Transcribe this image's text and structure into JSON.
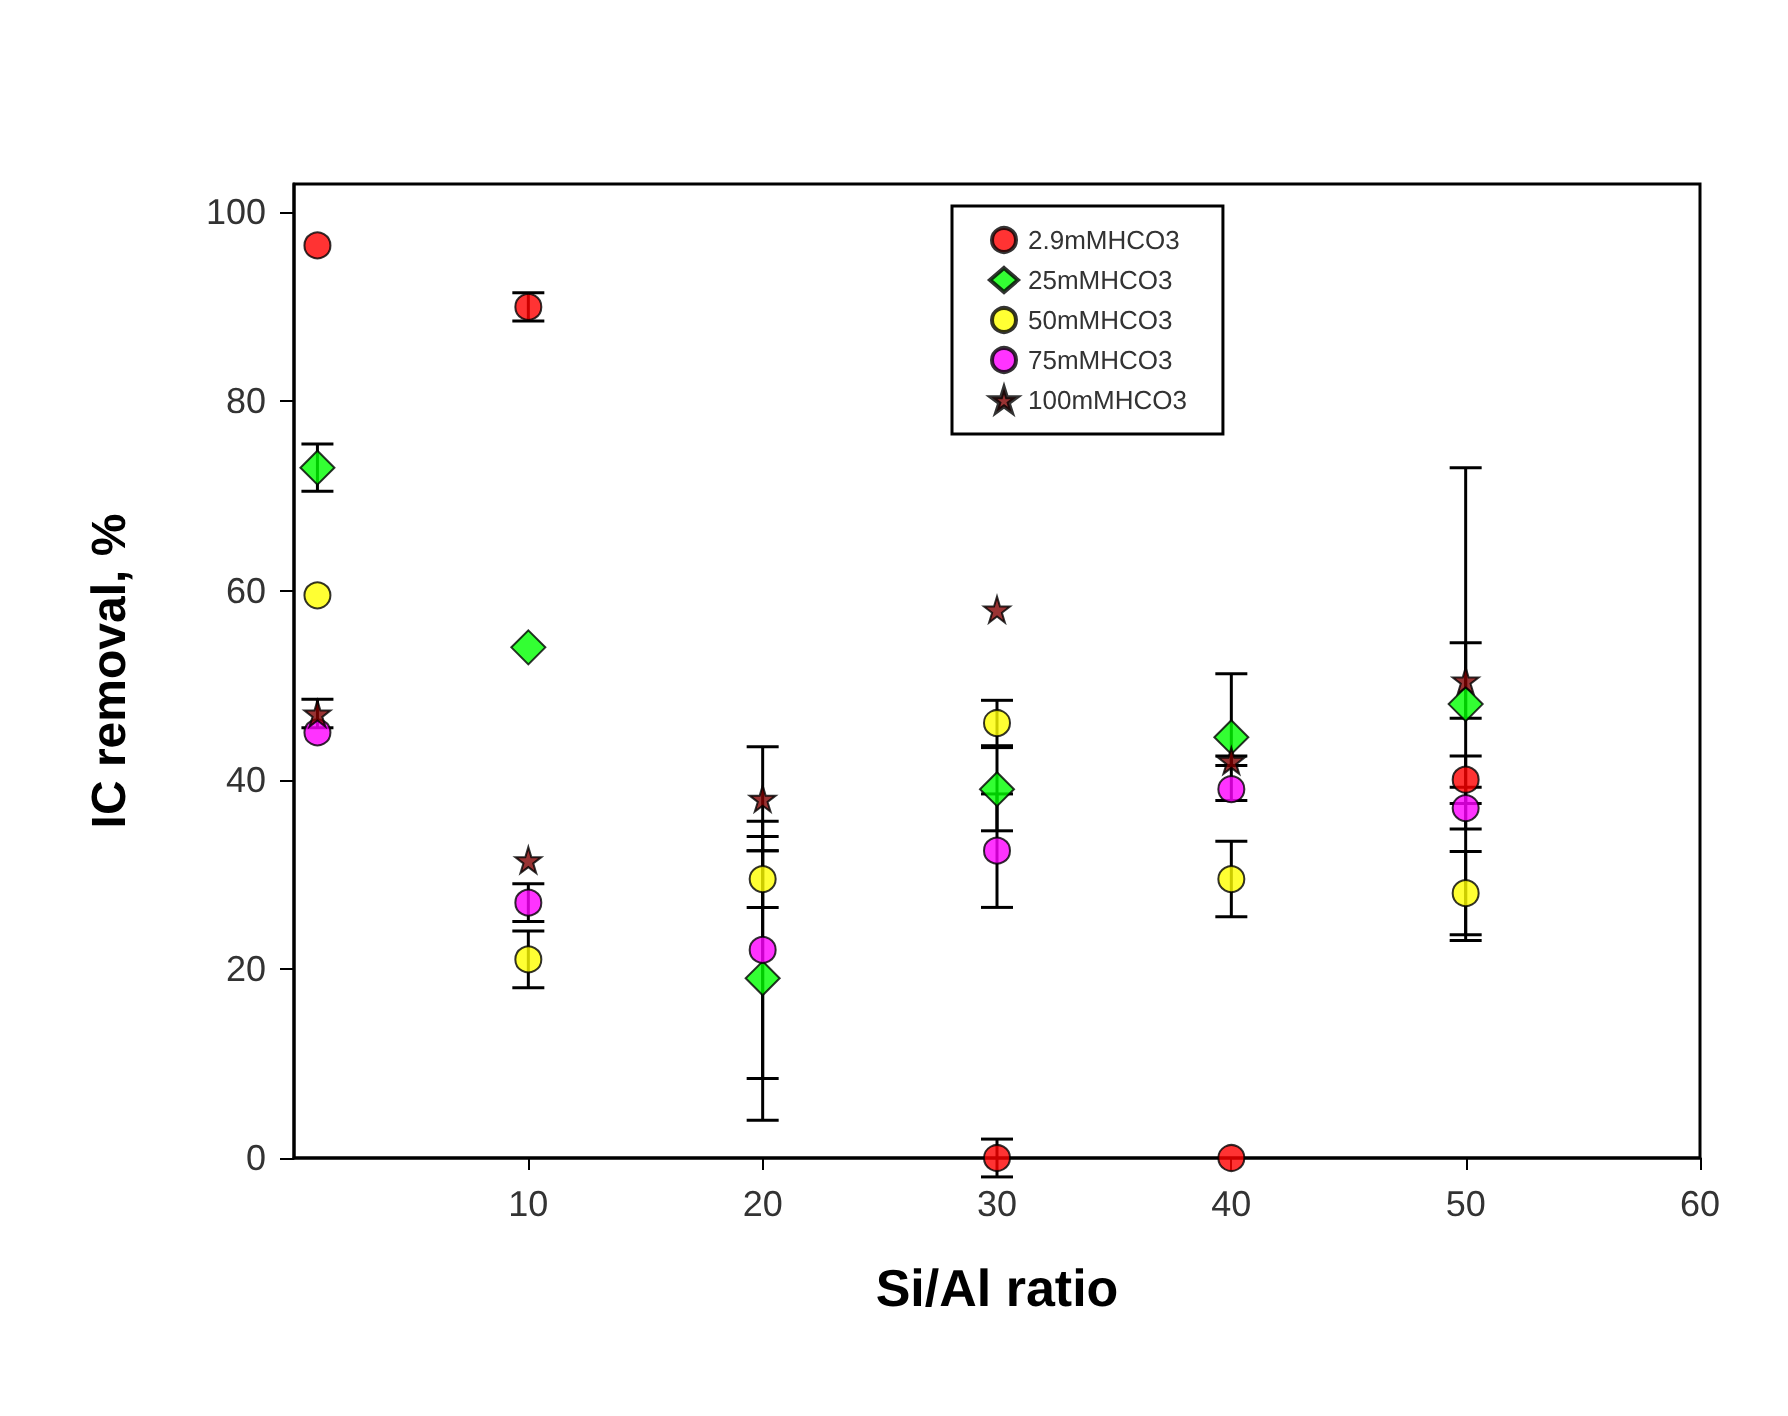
{
  "chart_data": {
    "type": "scatter",
    "xlabel": "Si/Al ratio",
    "ylabel": "IC removal, %",
    "xlim": [
      0,
      60
    ],
    "xticks": [
      10,
      20,
      30,
      40,
      50,
      60
    ],
    "ylim": [
      0,
      103
    ],
    "yticks": [
      0,
      20,
      40,
      60,
      80,
      100
    ],
    "grid": false,
    "legend": "top right",
    "x": [
      1,
      10,
      20,
      30,
      40,
      50
    ],
    "series": [
      {
        "name": "2.9mMHCO3",
        "color": "#ff0000",
        "marker": "circle",
        "values": [
          96.5,
          90,
          null,
          0,
          0,
          40
        ],
        "errors": [
          null,
          1.5,
          null,
          2,
          null,
          2.5
        ]
      },
      {
        "name": "25mMHCO3",
        "color": "#00ff00",
        "marker": "diamond",
        "values": [
          73,
          54,
          19,
          39,
          44.5,
          48
        ],
        "errors": [
          2.5,
          null,
          15,
          4.4,
          6.7,
          25
        ]
      },
      {
        "name": "50mMHCO3",
        "color": "#ffff00",
        "marker": "circle",
        "values": [
          59.5,
          21,
          29.5,
          46,
          29.5,
          28
        ],
        "errors": [
          null,
          3,
          3,
          2.4,
          4,
          4.4
        ]
      },
      {
        "name": "75mMHCO3",
        "color": "#ff00ff",
        "marker": "circle",
        "values": [
          45,
          27,
          22,
          32.5,
          39,
          37
        ],
        "errors": [
          null,
          2,
          13.6,
          6,
          null,
          2.2
        ]
      },
      {
        "name": "100mMHCO3",
        "color": "#800000",
        "marker": "star",
        "values": [
          47,
          31.5,
          38,
          58,
          42,
          50.5
        ],
        "errors": [
          1.5,
          null,
          5.5,
          null,
          0.5,
          4
        ]
      }
    ]
  }
}
